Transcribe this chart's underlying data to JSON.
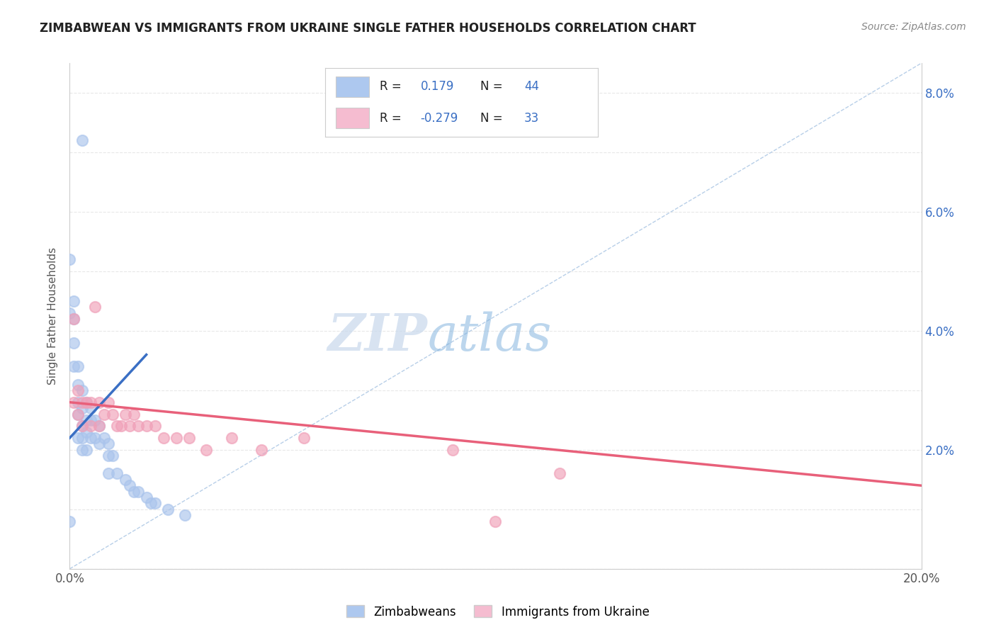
{
  "title": "ZIMBABWEAN VS IMMIGRANTS FROM UKRAINE SINGLE FATHER HOUSEHOLDS CORRELATION CHART",
  "source_text": "Source: ZipAtlas.com",
  "ylabel": "Single Father Households",
  "xlim": [
    0.0,
    0.2
  ],
  "ylim": [
    0.0,
    0.085
  ],
  "xtick_positions": [
    0.0,
    0.02,
    0.04,
    0.06,
    0.08,
    0.1,
    0.12,
    0.14,
    0.16,
    0.18,
    0.2
  ],
  "ytick_positions_right": [
    0.0,
    0.02,
    0.04,
    0.06,
    0.08
  ],
  "yticklabels_right": [
    "",
    "2.0%",
    "4.0%",
    "6.0%",
    "8.0%"
  ],
  "watermark_zip": "ZIP",
  "watermark_atlas": "atlas",
  "legend_r1_label": "R = ",
  "legend_r1_val": " 0.179",
  "legend_n1_label": "N = ",
  "legend_n1_val": "44",
  "legend_r2_label": "R = ",
  "legend_r2_val": "-0.279",
  "legend_n2_label": "N = ",
  "legend_n2_val": "33",
  "blue_fill_color": "#adc8ef",
  "pink_fill_color": "#f5bcd0",
  "blue_line_color": "#3a6fc4",
  "pink_line_color": "#e8607a",
  "blue_scatter_fill": "#aac4ec",
  "blue_scatter_edge": "#aac4ec",
  "pink_scatter_fill": "#f0a0b8",
  "pink_scatter_edge": "#f0a0b8",
  "dashed_color": "#b8cfe8",
  "grid_color": "#e8e8e8",
  "legend_value_color": "#3a6fc4",
  "legend_box_edge": "#cccccc",
  "right_axis_color": "#3a6fc4",
  "blue_points_x": [
    0.003,
    0.0,
    0.0,
    0.001,
    0.001,
    0.001,
    0.001,
    0.002,
    0.002,
    0.002,
    0.002,
    0.002,
    0.003,
    0.003,
    0.003,
    0.003,
    0.003,
    0.004,
    0.004,
    0.004,
    0.004,
    0.005,
    0.005,
    0.005,
    0.006,
    0.006,
    0.007,
    0.007,
    0.008,
    0.009,
    0.009,
    0.009,
    0.01,
    0.011,
    0.013,
    0.014,
    0.015,
    0.016,
    0.018,
    0.019,
    0.02,
    0.023,
    0.027,
    0.0
  ],
  "blue_points_y": [
    0.072,
    0.052,
    0.043,
    0.045,
    0.042,
    0.038,
    0.034,
    0.034,
    0.031,
    0.028,
    0.026,
    0.022,
    0.03,
    0.027,
    0.024,
    0.022,
    0.02,
    0.028,
    0.025,
    0.023,
    0.02,
    0.027,
    0.025,
    0.022,
    0.025,
    0.022,
    0.024,
    0.021,
    0.022,
    0.021,
    0.019,
    0.016,
    0.019,
    0.016,
    0.015,
    0.014,
    0.013,
    0.013,
    0.012,
    0.011,
    0.011,
    0.01,
    0.009,
    0.008
  ],
  "pink_points_x": [
    0.001,
    0.001,
    0.002,
    0.002,
    0.003,
    0.003,
    0.004,
    0.005,
    0.005,
    0.006,
    0.007,
    0.007,
    0.008,
    0.009,
    0.01,
    0.011,
    0.012,
    0.013,
    0.014,
    0.015,
    0.016,
    0.018,
    0.02,
    0.022,
    0.025,
    0.028,
    0.032,
    0.038,
    0.045,
    0.055,
    0.09,
    0.115,
    0.1
  ],
  "pink_points_y": [
    0.042,
    0.028,
    0.03,
    0.026,
    0.028,
    0.024,
    0.028,
    0.028,
    0.024,
    0.044,
    0.028,
    0.024,
    0.026,
    0.028,
    0.026,
    0.024,
    0.024,
    0.026,
    0.024,
    0.026,
    0.024,
    0.024,
    0.024,
    0.022,
    0.022,
    0.022,
    0.02,
    0.022,
    0.02,
    0.022,
    0.02,
    0.016,
    0.008
  ],
  "blue_trend_x": [
    0.0,
    0.018
  ],
  "blue_trend_y": [
    0.022,
    0.036
  ],
  "pink_trend_x": [
    0.0,
    0.2
  ],
  "pink_trend_y": [
    0.028,
    0.014
  ],
  "dashed_line_x": [
    0.0,
    0.2
  ],
  "dashed_line_y": [
    0.0,
    0.085
  ]
}
